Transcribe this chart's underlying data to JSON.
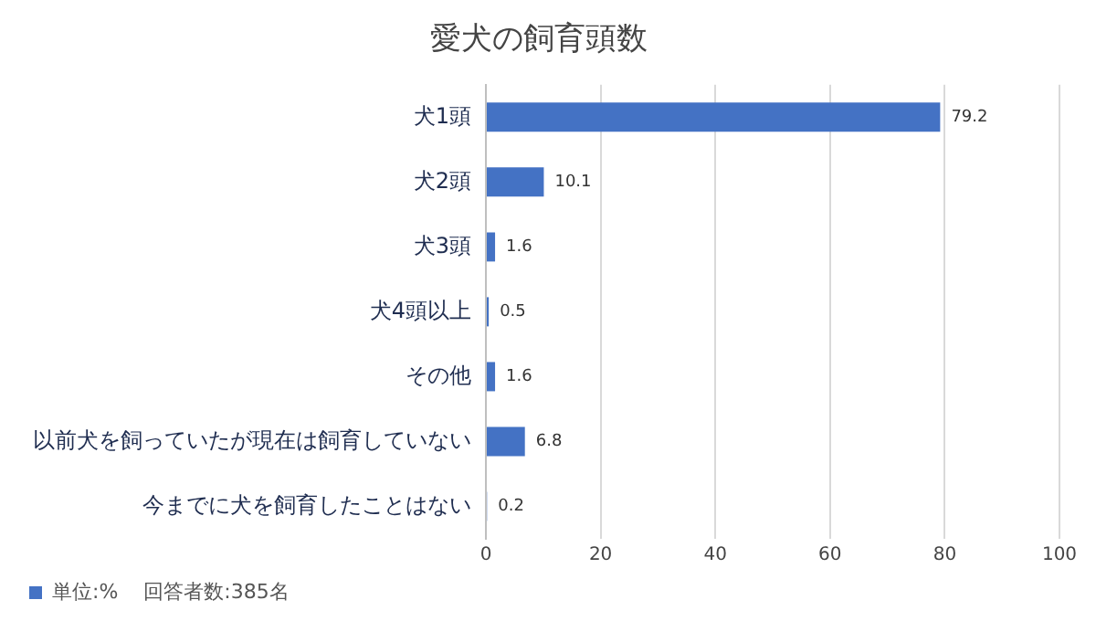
{
  "chart_data": {
    "type": "bar",
    "orientation": "horizontal",
    "title": "愛犬の飼育頭数",
    "categories": [
      "犬1頭",
      "犬2頭",
      "犬3頭",
      "犬4頭以上",
      "その他",
      "以前犬を飼っていたが現在は飼育していない",
      "今までに犬を飼育したことはない"
    ],
    "series": [
      {
        "name": "単位:%",
        "color": "#4472c4",
        "values": [
          79.2,
          10.1,
          1.6,
          0.5,
          1.6,
          6.8,
          0.2
        ]
      }
    ],
    "xlim": [
      0,
      100
    ],
    "xticks": [
      0,
      20,
      40,
      60,
      80,
      100
    ],
    "grid": "x",
    "legend": "bottom",
    "data_labels": true,
    "annotations": [
      "回答者数:385名"
    ]
  }
}
